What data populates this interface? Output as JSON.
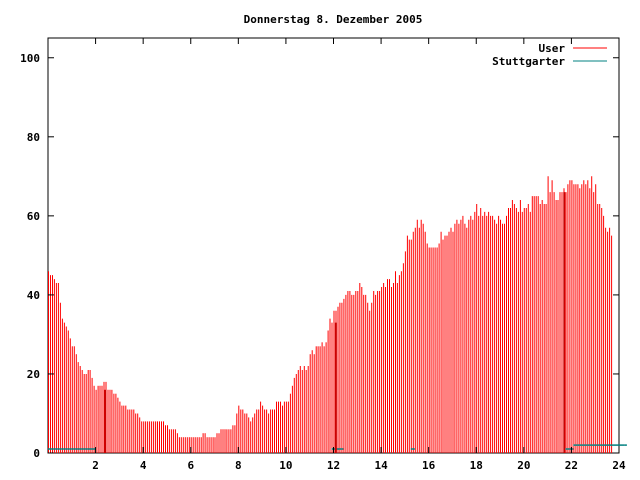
{
  "chart_data": {
    "type": "bar",
    "title": "Donnerstag 8. Dezember 2005",
    "xlabel": "",
    "ylabel": "",
    "xlim": [
      0,
      24
    ],
    "ylim": [
      0,
      105
    ],
    "x_ticks": [
      "2",
      "4",
      "6",
      "8",
      "10",
      "12",
      "14",
      "16",
      "18",
      "20",
      "22",
      "24"
    ],
    "y_ticks": [
      "0",
      "20",
      "40",
      "60",
      "80",
      "100"
    ],
    "grid": false,
    "legend_position": "top-right",
    "series": [
      {
        "name": "User",
        "color": "#ff0000",
        "step_hours": 0.083333,
        "start_hour": 0.0,
        "values": [
          46,
          45,
          45,
          44,
          43,
          43,
          38,
          34,
          33,
          32,
          31,
          29,
          27,
          27,
          25,
          23,
          22,
          21,
          20,
          20,
          21,
          21,
          19,
          17,
          16,
          17,
          17,
          17,
          18,
          18,
          16,
          16,
          16,
          15,
          15,
          14,
          13,
          12,
          12,
          12,
          11,
          11,
          11,
          11,
          10,
          10,
          9,
          8,
          8,
          8,
          8,
          8,
          8,
          8,
          8,
          8,
          8,
          8,
          8,
          7,
          7,
          6,
          6,
          6,
          6,
          5,
          4,
          4,
          4,
          4,
          4,
          4,
          4,
          4,
          4,
          4,
          4,
          4,
          5,
          5,
          4,
          4,
          4,
          4,
          4,
          5,
          5,
          6,
          6,
          6,
          6,
          6,
          6,
          7,
          7,
          10,
          12,
          11,
          11,
          10,
          10,
          9,
          8,
          9,
          10,
          11,
          11,
          13,
          12,
          11,
          11,
          10,
          11,
          11,
          11,
          13,
          13,
          13,
          12,
          13,
          13,
          13,
          15,
          17,
          19,
          20,
          21,
          22,
          21,
          22,
          21,
          22,
          25,
          26,
          25,
          27,
          27,
          27,
          28,
          27,
          28,
          31,
          34,
          33,
          36,
          36,
          37,
          38,
          38,
          39,
          40,
          41,
          41,
          40,
          40,
          41,
          41,
          43,
          42,
          40,
          40,
          38,
          36,
          38,
          41,
          40,
          41,
          41,
          42,
          43,
          42,
          44,
          44,
          42,
          43,
          46,
          43,
          45,
          46,
          48,
          51,
          55,
          54,
          54,
          56,
          57,
          59,
          57,
          59,
          58,
          56,
          53,
          52,
          52,
          52,
          52,
          52,
          53,
          56,
          54,
          55,
          55,
          56,
          57,
          56,
          58,
          59,
          58,
          59,
          60,
          58,
          57,
          59,
          60,
          59,
          61,
          63,
          60,
          62,
          60,
          61,
          60,
          61,
          60,
          60,
          59,
          58,
          60,
          59,
          58,
          58,
          60,
          62,
          62,
          64,
          63,
          62,
          61,
          64,
          61,
          62,
          62,
          63,
          61,
          65,
          65,
          65,
          65,
          63,
          64,
          63,
          63,
          70,
          66,
          69,
          66,
          64,
          64,
          66,
          66,
          67,
          66,
          68,
          69,
          69,
          68,
          68,
          68,
          67,
          68,
          69,
          68,
          69,
          67,
          70,
          66,
          68,
          63,
          63,
          62,
          60,
          57,
          56,
          57,
          55
        ]
      },
      {
        "name": "Stuttgarter",
        "color": "#008080",
        "step_hours": 0.083333,
        "start_hour": 0.0,
        "values": [
          1,
          1,
          1,
          1,
          1,
          1,
          1,
          1,
          1,
          1,
          1,
          1,
          1,
          1,
          1,
          1,
          1,
          1,
          1,
          1,
          1,
          1,
          1,
          1,
          0,
          0,
          0,
          0,
          0,
          0,
          0,
          0,
          0,
          0,
          0,
          0,
          0,
          0,
          0,
          0,
          0,
          0,
          0,
          0,
          0,
          0,
          0,
          0,
          0,
          0,
          0,
          0,
          0,
          0,
          0,
          0,
          0,
          0,
          0,
          0,
          0,
          0,
          0,
          0,
          0,
          0,
          0,
          0,
          0,
          0,
          0,
          0,
          0,
          0,
          0,
          0,
          0,
          0,
          0,
          0,
          0,
          0,
          0,
          0,
          0,
          0,
          0,
          0,
          0,
          0,
          0,
          0,
          0,
          0,
          0,
          0,
          0,
          0,
          0,
          0,
          0,
          0,
          0,
          0,
          0,
          0,
          0,
          0,
          0,
          0,
          0,
          0,
          0,
          0,
          0,
          0,
          0,
          0,
          0,
          0,
          0,
          0,
          0,
          0,
          0,
          0,
          0,
          0,
          0,
          0,
          0,
          0,
          0,
          0,
          0,
          0,
          0,
          0,
          0,
          0,
          0,
          0,
          0,
          1,
          1,
          1,
          1,
          1,
          1,
          0,
          0,
          0,
          0,
          0,
          0,
          0,
          0,
          0,
          0,
          0,
          0,
          0,
          0,
          0,
          0,
          0,
          0,
          0,
          0,
          0,
          0,
          0,
          0,
          0,
          0,
          0,
          0,
          0,
          0,
          0,
          0,
          0,
          0,
          1,
          1,
          0,
          0,
          0,
          0,
          0,
          0,
          0,
          0,
          0,
          0,
          0,
          0,
          0,
          0,
          0,
          0,
          0,
          0,
          0,
          0,
          0,
          0,
          0,
          0,
          0,
          0,
          0,
          0,
          0,
          0,
          0,
          0,
          0,
          0,
          0,
          0,
          0,
          0,
          0,
          0,
          0,
          0,
          0,
          0,
          0,
          0,
          0,
          0,
          0,
          0,
          0,
          0,
          0,
          0,
          0,
          0,
          0,
          0,
          0,
          0,
          0,
          0,
          0,
          0,
          0,
          0,
          0,
          0,
          0,
          0,
          0,
          0,
          0,
          0,
          0,
          0,
          1,
          1,
          1,
          1,
          2,
          2,
          2,
          2,
          2,
          2,
          2,
          2,
          2,
          2,
          2,
          2,
          2,
          2,
          2,
          2,
          2,
          2,
          2,
          2,
          2,
          2,
          2,
          2,
          2,
          2,
          2
        ]
      }
    ],
    "highlights": [
      {
        "hour": 2.4,
        "value": 16
      },
      {
        "hour": 12.1,
        "value": 33
      },
      {
        "hour": 21.7,
        "value": 66
      }
    ]
  }
}
